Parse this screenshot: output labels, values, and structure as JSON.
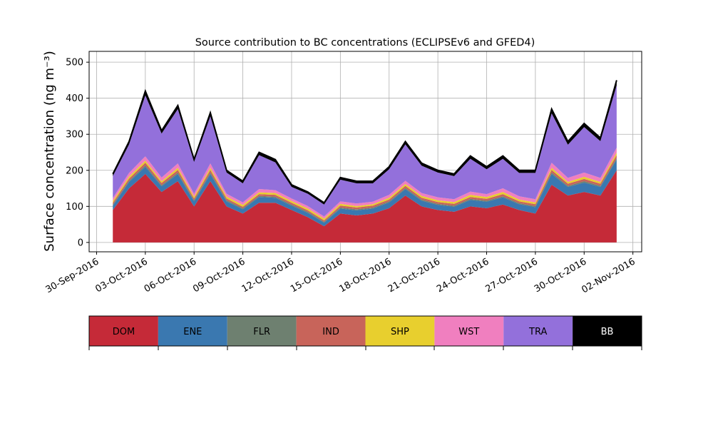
{
  "chart_data": {
    "type": "stacked_area",
    "title": "Source contribution to BC concentrations (ECLIPSEv6 and GFED4)",
    "y_label": "Surface concentration (ng m⁻³)",
    "x": [
      "2016-10-01",
      "2016-10-02",
      "2016-10-03",
      "2016-10-04",
      "2016-10-05",
      "2016-10-06",
      "2016-10-07",
      "2016-10-08",
      "2016-10-09",
      "2016-10-10",
      "2016-10-11",
      "2016-10-12",
      "2016-10-13",
      "2016-10-14",
      "2016-10-15",
      "2016-10-16",
      "2016-10-17",
      "2016-10-18",
      "2016-10-19",
      "2016-10-20",
      "2016-10-21",
      "2016-10-22",
      "2016-10-23",
      "2016-10-24",
      "2016-10-25",
      "2016-10-26",
      "2016-10-27",
      "2016-10-28",
      "2016-10-29",
      "2016-10-30",
      "2016-10-31",
      "2016-11-01"
    ],
    "series": [
      {
        "name": "DOM",
        "color": "#c52a38",
        "values": [
          90,
          150,
          190,
          140,
          170,
          100,
          170,
          100,
          80,
          110,
          110,
          90,
          70,
          45,
          80,
          75,
          80,
          95,
          130,
          100,
          90,
          85,
          100,
          95,
          105,
          90,
          80,
          160,
          130,
          140,
          130,
          200
        ]
      },
      {
        "name": "ENE",
        "color": "#3a78b0",
        "values": [
          12,
          18,
          20,
          16,
          20,
          14,
          20,
          14,
          12,
          16,
          14,
          12,
          12,
          10,
          14,
          14,
          14,
          16,
          18,
          16,
          14,
          14,
          18,
          18,
          20,
          16,
          18,
          30,
          24,
          26,
          24,
          30
        ]
      },
      {
        "name": "FLR",
        "color": "#6e8070",
        "values": [
          3,
          3,
          4,
          3,
          4,
          3,
          4,
          3,
          3,
          3,
          3,
          3,
          3,
          2,
          3,
          3,
          3,
          3,
          3,
          3,
          3,
          3,
          3,
          3,
          3,
          3,
          3,
          4,
          3,
          4,
          3,
          4
        ]
      },
      {
        "name": "IND",
        "color": "#c8645a",
        "values": [
          5,
          6,
          7,
          6,
          7,
          5,
          7,
          5,
          4,
          5,
          5,
          5,
          4,
          4,
          5,
          5,
          5,
          5,
          6,
          5,
          5,
          5,
          5,
          5,
          6,
          5,
          5,
          7,
          6,
          6,
          6,
          8
        ]
      },
      {
        "name": "SHP",
        "color": "#e8cf2e",
        "values": [
          5,
          6,
          6,
          5,
          6,
          5,
          6,
          5,
          5,
          5,
          5,
          5,
          5,
          5,
          5,
          4,
          4,
          5,
          5,
          5,
          5,
          5,
          6,
          5,
          6,
          5,
          5,
          6,
          5,
          6,
          5,
          7
        ]
      },
      {
        "name": "WST",
        "color": "#f07fbf",
        "values": [
          8,
          10,
          12,
          10,
          12,
          8,
          12,
          8,
          7,
          9,
          8,
          7,
          7,
          6,
          7,
          7,
          7,
          8,
          9,
          8,
          8,
          8,
          9,
          8,
          10,
          9,
          9,
          14,
          11,
          12,
          11,
          14
        ]
      },
      {
        "name": "TRA",
        "color": "#9370db",
        "values": [
          61,
          79,
          169,
          122,
          151,
          89,
          131,
          59,
          53,
          94,
          77,
          32,
          34,
          33,
          60,
          56,
          51,
          71,
          101,
          76,
          69,
          64,
          91,
          69,
          82,
          65,
          73,
          137,
          92,
          126,
          102,
          173
        ]
      },
      {
        "name": "BB",
        "color": "#000000",
        "values": [
          6,
          8,
          12,
          8,
          10,
          6,
          10,
          6,
          6,
          8,
          8,
          6,
          5,
          5,
          6,
          6,
          6,
          7,
          8,
          7,
          6,
          6,
          8,
          7,
          8,
          7,
          7,
          12,
          9,
          10,
          9,
          14
        ]
      }
    ],
    "xlim": [
      "2016-09-29T13:00:00Z",
      "2016-11-02T13:00:00Z"
    ],
    "xticks": [
      {
        "value": "2016-09-30",
        "label": "30-Sep-2016"
      },
      {
        "value": "2016-10-03",
        "label": "03-Oct-2016"
      },
      {
        "value": "2016-10-06",
        "label": "06-Oct-2016"
      },
      {
        "value": "2016-10-09",
        "label": "09-Oct-2016"
      },
      {
        "value": "2016-10-12",
        "label": "12-Oct-2016"
      },
      {
        "value": "2016-10-15",
        "label": "15-Oct-2016"
      },
      {
        "value": "2016-10-18",
        "label": "18-Oct-2016"
      },
      {
        "value": "2016-10-21",
        "label": "21-Oct-2016"
      },
      {
        "value": "2016-10-24",
        "label": "24-Oct-2016"
      },
      {
        "value": "2016-10-27",
        "label": "27-Oct-2016"
      },
      {
        "value": "2016-10-30",
        "label": "30-Oct-2016"
      },
      {
        "value": "2016-11-02",
        "label": "02-Nov-2016"
      }
    ],
    "ylim": [
      -26,
      530
    ],
    "yticks": [
      0,
      100,
      200,
      300,
      400,
      500
    ],
    "grid": true
  }
}
